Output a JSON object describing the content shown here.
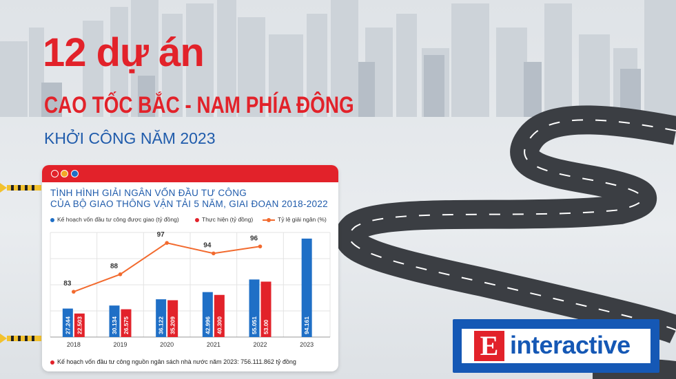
{
  "header": {
    "line1": "12 dự án",
    "line2": "CAO TỐC BẮC - NAM PHÍA ĐÔNG",
    "line3": "KHỞI CÔNG NĂM 2023"
  },
  "card": {
    "title_line1": "TÌNH HÌNH GIẢI NGÂN VỐN ĐẦU TƯ CÔNG",
    "title_line2": "CỦA BỘ GIAO THÔNG VẬN TẢI 5 NĂM, GIAI ĐOẠN 2018-2022",
    "footnote": "Kế hoạch vốn đầu tư công nguồn ngân sách nhà nước năm 2023: 756.111.862 tỷ đồng"
  },
  "chart_data": {
    "type": "bar",
    "categories": [
      "2018",
      "2019",
      "2020",
      "2021",
      "2022",
      "2023"
    ],
    "series": [
      {
        "name": "Kế hoạch vốn đầu tư công được giao (tỷ đồng)",
        "values": [
          27.244,
          30.134,
          36.122,
          42.996,
          55.051,
          94.161
        ],
        "labels": [
          "27.244",
          "30.134",
          "36.122",
          "42.996",
          "55.051",
          "94.161"
        ],
        "color": "#1f6fc6",
        "type": "bar"
      },
      {
        "name": "Thực hiện (tỷ đồng)",
        "values": [
          22.503,
          26.575,
          35.209,
          40.3,
          53.0,
          null
        ],
        "labels": [
          "22.503",
          "26.575",
          "35.209",
          "40.300",
          "53.00",
          ""
        ],
        "color": "#e2222a",
        "type": "bar"
      },
      {
        "name": "Tỷ lệ giải ngân (%)",
        "values": [
          83,
          88,
          97,
          94,
          96,
          null
        ],
        "labels": [
          "83",
          "88",
          "97",
          "94",
          "96",
          ""
        ],
        "color": "#f26a2e",
        "type": "line"
      }
    ],
    "ylim_bars": [
      0,
      100
    ],
    "ylim_line": [
      70,
      100
    ],
    "grid": true,
    "legend": "top"
  },
  "branding": {
    "logo_letter": "E",
    "logo_word": "interactive"
  },
  "colors": {
    "accent_red": "#e2222a",
    "accent_blue": "#1f5bab",
    "line_orange": "#f26a2e"
  }
}
